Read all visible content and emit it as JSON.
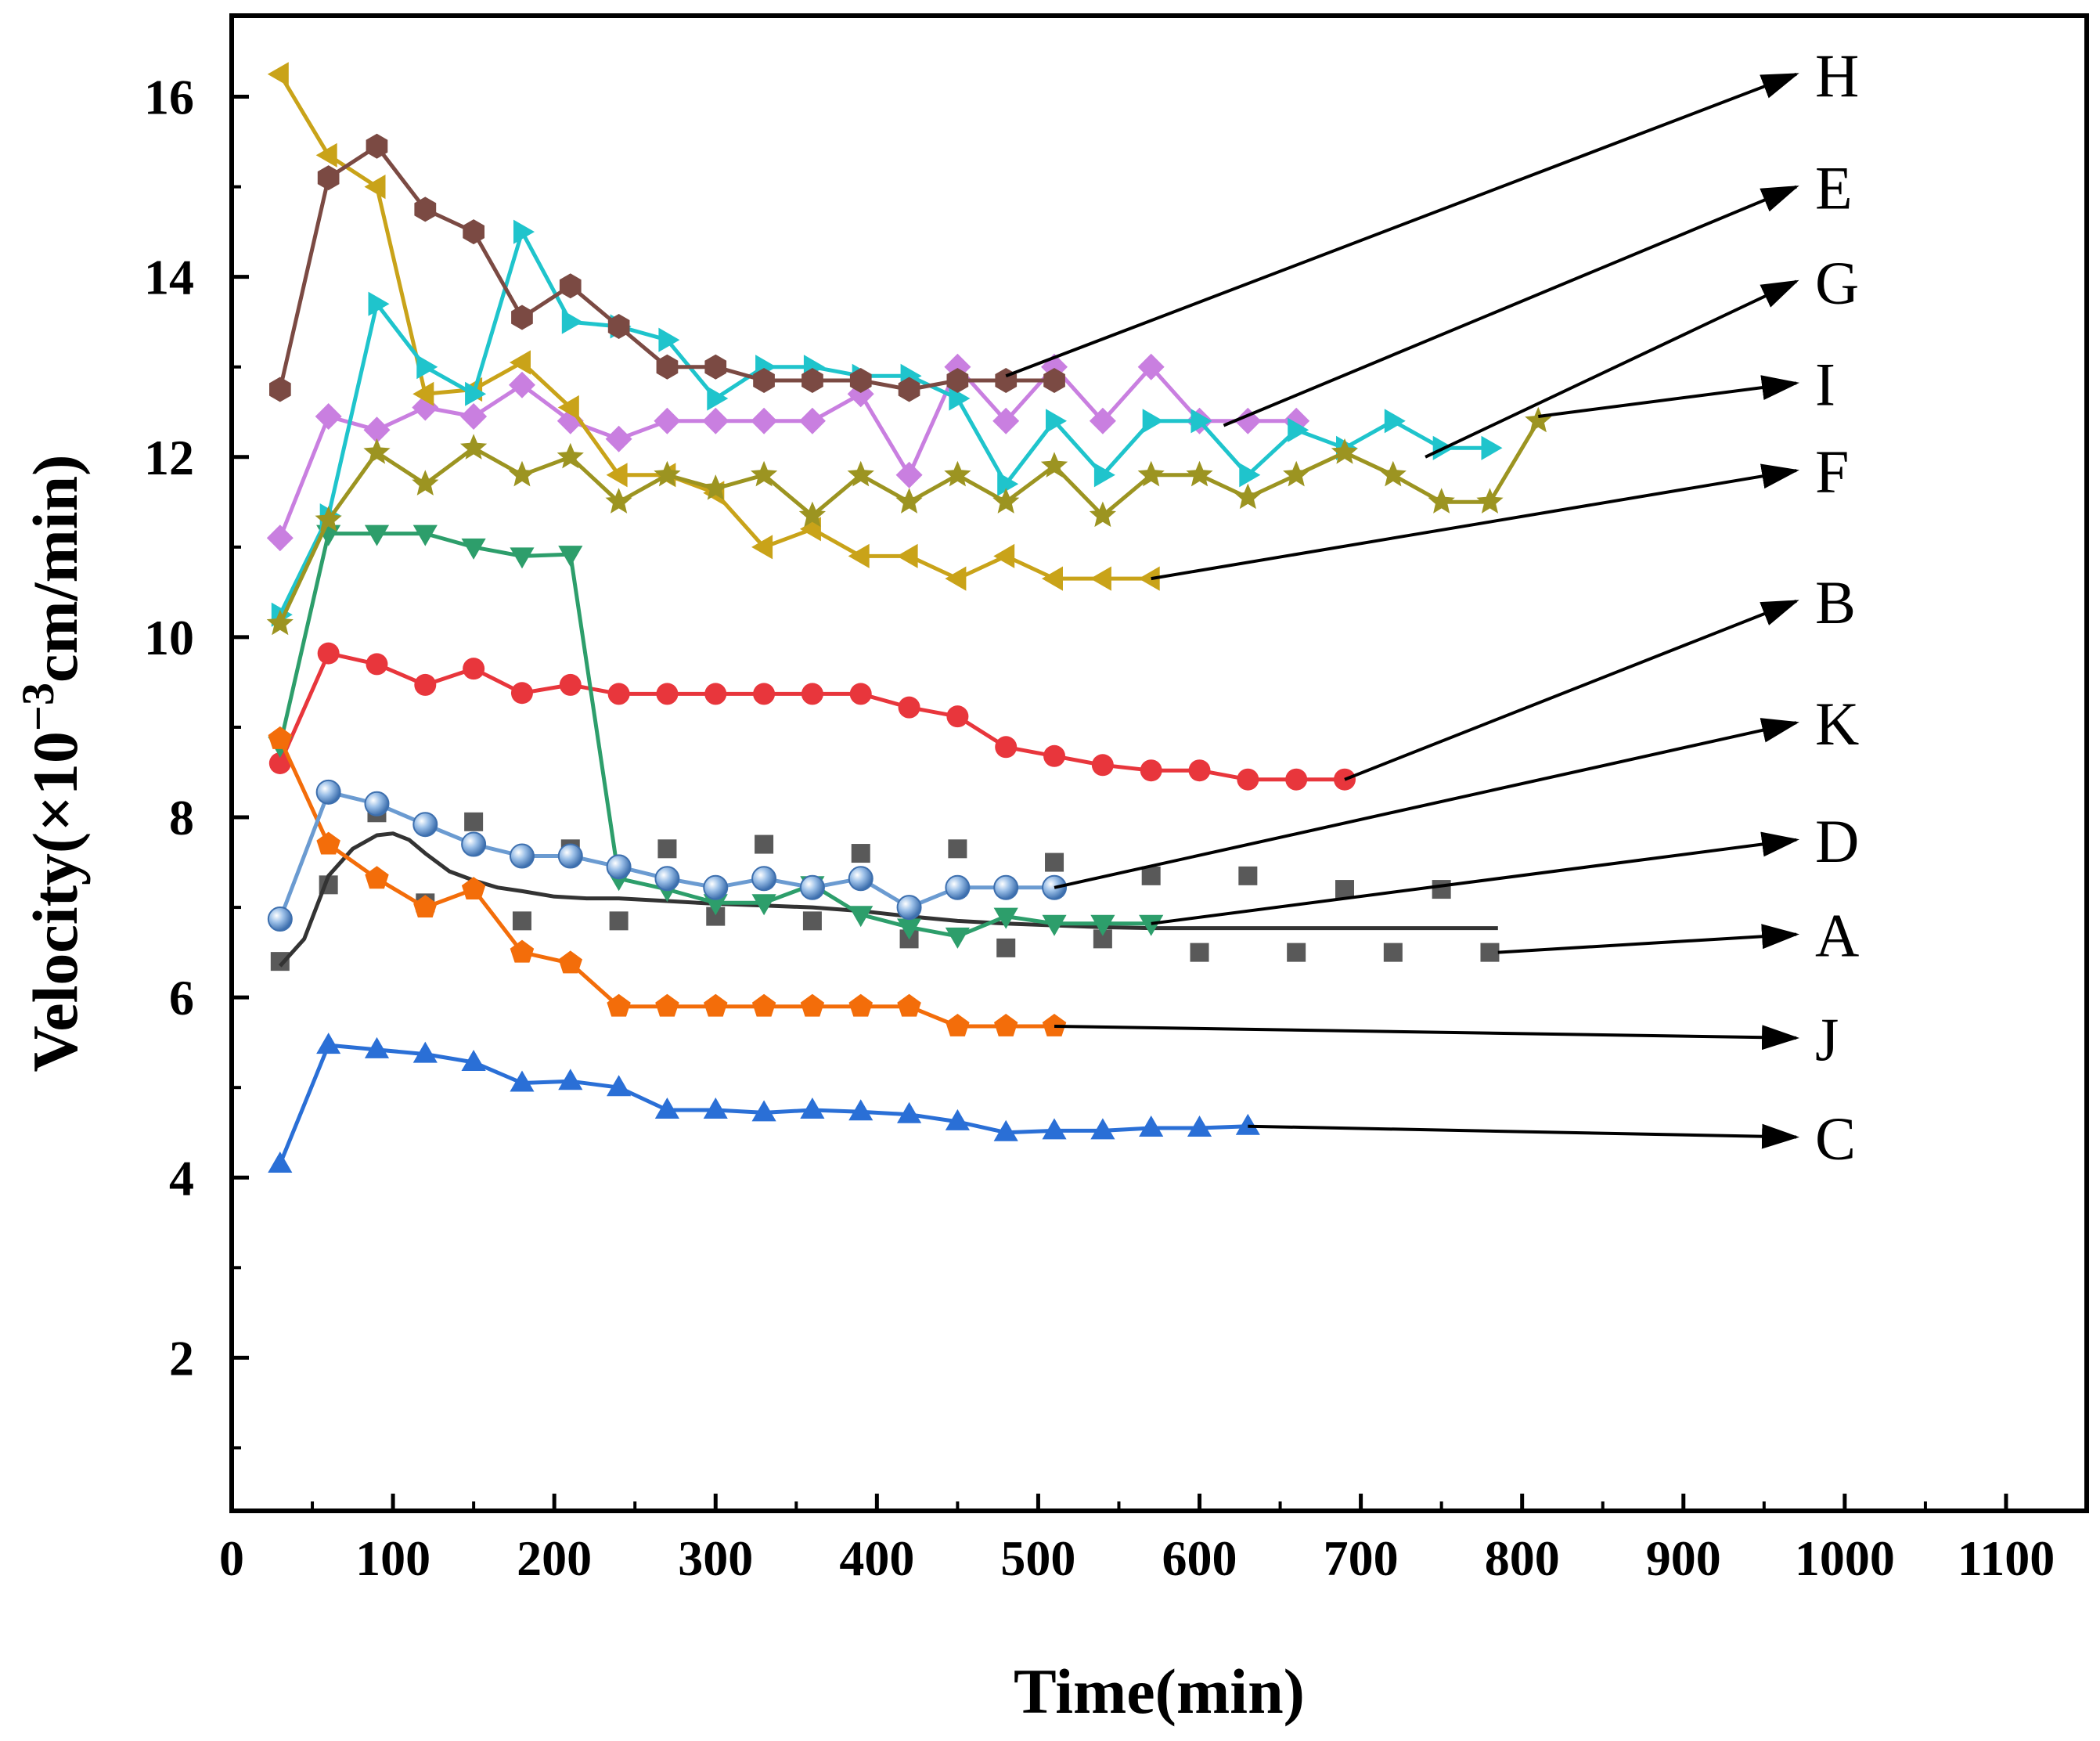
{
  "chart_data": {
    "type": "line",
    "title": "",
    "xlabel": "Time(min)",
    "ylabel": {
      "prefix": "Velocity(×10",
      "exp": "−3",
      "suffix": "cm/min)"
    },
    "xlim": [
      0,
      1150
    ],
    "ylim": [
      0.3,
      16.9
    ],
    "xticks": [
      0,
      100,
      200,
      300,
      400,
      500,
      600,
      700,
      800,
      900,
      1000,
      1100
    ],
    "yticks": [
      2,
      4,
      6,
      8,
      10,
      12,
      14,
      16
    ],
    "grid": false,
    "series": [
      {
        "name": "A",
        "color": "#595959",
        "marker": "square",
        "line": false,
        "x": [
          30,
          60,
          90,
          120,
          150,
          180,
          210,
          240,
          270,
          300,
          330,
          360,
          390,
          420,
          450,
          480,
          510,
          540,
          570,
          600,
          630,
          660,
          690,
          720,
          750,
          780
        ],
        "y": [
          6.4,
          7.25,
          8.05,
          7.05,
          7.95,
          6.85,
          7.65,
          6.85,
          7.65,
          6.9,
          7.7,
          6.85,
          7.6,
          6.65,
          7.65,
          6.55,
          7.5,
          6.65,
          7.35,
          6.5,
          7.35,
          6.5,
          7.2,
          6.5,
          7.2,
          6.5
        ]
      },
      {
        "name": "A",
        "color": "#333333",
        "marker": "none",
        "line": true,
        "fit": true,
        "x": [
          30,
          45,
          60,
          75,
          90,
          100,
          110,
          120,
          135,
          150,
          165,
          180,
          200,
          220,
          240,
          270,
          300,
          330,
          360,
          390,
          420,
          450,
          480,
          510,
          540,
          570,
          600,
          630,
          660,
          690,
          720,
          750,
          785
        ],
        "y": [
          6.35,
          6.65,
          7.35,
          7.65,
          7.8,
          7.82,
          7.75,
          7.6,
          7.4,
          7.3,
          7.22,
          7.18,
          7.12,
          7.1,
          7.1,
          7.07,
          7.04,
          7.02,
          7.0,
          6.96,
          6.9,
          6.85,
          6.82,
          6.8,
          6.78,
          6.77,
          6.77,
          6.77,
          6.77,
          6.77,
          6.77,
          6.77,
          6.77
        ]
      },
      {
        "name": "B",
        "color": "#e8363c",
        "marker": "circle",
        "line": true,
        "x": [
          30,
          60,
          90,
          120,
          150,
          180,
          210,
          240,
          270,
          300,
          330,
          360,
          390,
          420,
          450,
          480,
          510,
          540,
          570,
          600,
          630,
          660,
          690
        ],
        "y": [
          8.6,
          9.82,
          9.7,
          9.47,
          9.65,
          9.38,
          9.47,
          9.37,
          9.37,
          9.37,
          9.37,
          9.37,
          9.37,
          9.22,
          9.12,
          8.78,
          8.68,
          8.58,
          8.52,
          8.52,
          8.42,
          8.42,
          8.42
        ]
      },
      {
        "name": "C",
        "color": "#2a6fd6",
        "marker": "triangle-up",
        "line": true,
        "x": [
          30,
          60,
          90,
          120,
          150,
          180,
          210,
          240,
          270,
          300,
          330,
          360,
          390,
          420,
          450,
          480,
          510,
          540,
          570,
          600,
          630
        ],
        "y": [
          4.15,
          5.47,
          5.42,
          5.37,
          5.28,
          5.05,
          5.07,
          5.0,
          4.75,
          4.75,
          4.72,
          4.75,
          4.73,
          4.7,
          4.62,
          4.5,
          4.52,
          4.52,
          4.55,
          4.55,
          4.57
        ]
      },
      {
        "name": "D",
        "color": "#2d9e6b",
        "marker": "triangle-down",
        "line": true,
        "x": [
          30,
          60,
          90,
          120,
          150,
          180,
          210,
          240,
          270,
          300,
          330,
          360,
          390,
          420,
          450,
          480,
          510,
          540,
          570
        ],
        "y": [
          8.8,
          11.15,
          11.15,
          11.15,
          11.0,
          10.9,
          10.92,
          7.32,
          7.2,
          7.05,
          7.05,
          7.25,
          6.92,
          6.78,
          6.68,
          6.9,
          6.82,
          6.82,
          6.82
        ]
      },
      {
        "name": "E",
        "color": "#c97fe0",
        "marker": "diamond",
        "line": true,
        "x": [
          30,
          60,
          90,
          120,
          150,
          180,
          210,
          240,
          270,
          300,
          330,
          360,
          390,
          420,
          450,
          480,
          510,
          540,
          570,
          600,
          630,
          660
        ],
        "y": [
          11.1,
          12.45,
          12.3,
          12.55,
          12.45,
          12.8,
          12.4,
          12.2,
          12.4,
          12.4,
          12.4,
          12.4,
          12.7,
          11.8,
          13.0,
          12.4,
          13.0,
          12.4,
          13.0,
          12.4,
          12.4,
          12.4
        ]
      },
      {
        "name": "F",
        "color": "#c9a319",
        "marker": "triangle-left",
        "line": true,
        "x": [
          30,
          60,
          90,
          120,
          150,
          180,
          210,
          240,
          270,
          300,
          330,
          360,
          390,
          420,
          450,
          480,
          510,
          540,
          570
        ],
        "y": [
          16.25,
          15.35,
          15.0,
          12.7,
          12.75,
          13.05,
          12.55,
          11.8,
          11.8,
          11.6,
          11.0,
          11.2,
          10.9,
          10.9,
          10.65,
          10.9,
          10.65,
          10.65,
          10.65
        ]
      },
      {
        "name": "G",
        "color": "#1fc4cc",
        "marker": "triangle-right",
        "line": true,
        "x": [
          30,
          60,
          90,
          120,
          150,
          180,
          210,
          240,
          270,
          300,
          330,
          360,
          390,
          420,
          450,
          480,
          510,
          540,
          570,
          600,
          630,
          660,
          690,
          720,
          750,
          780
        ],
        "y": [
          10.25,
          11.35,
          13.7,
          13.0,
          12.7,
          14.5,
          13.5,
          13.45,
          13.3,
          12.65,
          13.0,
          13.0,
          12.9,
          12.9,
          12.65,
          11.7,
          12.4,
          11.8,
          12.4,
          12.4,
          11.8,
          12.3,
          12.1,
          12.4,
          12.1,
          12.1
        ]
      },
      {
        "name": "H",
        "color": "#7b4a43",
        "marker": "hexagon",
        "line": true,
        "x": [
          30,
          60,
          90,
          120,
          150,
          180,
          210,
          240,
          270,
          300,
          330,
          360,
          390,
          420,
          450,
          480,
          510
        ],
        "y": [
          12.75,
          15.1,
          15.45,
          14.75,
          14.5,
          13.55,
          13.9,
          13.45,
          13.0,
          13.0,
          12.85,
          12.85,
          12.85,
          12.75,
          12.85,
          12.85,
          12.85
        ]
      },
      {
        "name": "I",
        "color": "#9c9421",
        "marker": "star",
        "line": true,
        "x": [
          30,
          60,
          90,
          120,
          150,
          180,
          210,
          240,
          270,
          300,
          330,
          360,
          390,
          420,
          450,
          480,
          510,
          540,
          570,
          600,
          630,
          660,
          690,
          720,
          750,
          780,
          810
        ],
        "y": [
          10.15,
          11.3,
          12.05,
          11.7,
          12.1,
          11.8,
          12.0,
          11.5,
          11.8,
          11.65,
          11.8,
          11.35,
          11.8,
          11.5,
          11.8,
          11.5,
          11.9,
          11.35,
          11.8,
          11.8,
          11.55,
          11.8,
          12.05,
          11.8,
          11.5,
          11.5,
          12.4
        ]
      },
      {
        "name": "J",
        "color": "#f36d0a",
        "marker": "pentagon",
        "line": true,
        "x": [
          30,
          60,
          90,
          120,
          150,
          180,
          210,
          240,
          270,
          300,
          330,
          360,
          390,
          420,
          450,
          480,
          510
        ],
        "y": [
          8.87,
          7.7,
          7.32,
          7.0,
          7.2,
          6.5,
          6.38,
          5.9,
          5.9,
          5.9,
          5.9,
          5.9,
          5.9,
          5.9,
          5.68,
          5.68,
          5.68
        ]
      },
      {
        "name": "K",
        "color": "#6b9bd1",
        "marker": "sphere",
        "line": true,
        "x": [
          30,
          60,
          90,
          120,
          150,
          180,
          210,
          240,
          270,
          300,
          330,
          360,
          390,
          420,
          450,
          480,
          510
        ],
        "y": [
          6.87,
          8.28,
          8.15,
          7.92,
          7.7,
          7.57,
          7.57,
          7.45,
          7.32,
          7.22,
          7.32,
          7.22,
          7.32,
          7.0,
          7.22,
          7.22,
          7.22
        ]
      }
    ],
    "annotations": [
      {
        "label": "H",
        "from": [
          480,
          12.9
        ],
        "to": [
          970,
          16.25
        ]
      },
      {
        "label": "E",
        "from": [
          615,
          12.35
        ],
        "to": [
          970,
          15.0
        ]
      },
      {
        "label": "G",
        "from": [
          740,
          12.0
        ],
        "to": [
          970,
          13.95
        ]
      },
      {
        "label": "I",
        "from": [
          810,
          12.45
        ],
        "to": [
          970,
          12.82
        ]
      },
      {
        "label": "F",
        "from": [
          570,
          10.65
        ],
        "to": [
          970,
          11.85
        ]
      },
      {
        "label": "B",
        "from": [
          690,
          8.42
        ],
        "to": [
          970,
          10.4
        ]
      },
      {
        "label": "K",
        "from": [
          510,
          7.22
        ],
        "to": [
          970,
          9.05
        ]
      },
      {
        "label": "D",
        "from": [
          570,
          6.82
        ],
        "to": [
          970,
          7.75
        ]
      },
      {
        "label": "A",
        "from": [
          785,
          6.5
        ],
        "to": [
          970,
          6.7
        ]
      },
      {
        "label": "J",
        "from": [
          510,
          5.68
        ],
        "to": [
          970,
          5.55
        ]
      },
      {
        "label": "C",
        "from": [
          630,
          4.57
        ],
        "to": [
          970,
          4.45
        ]
      }
    ]
  }
}
